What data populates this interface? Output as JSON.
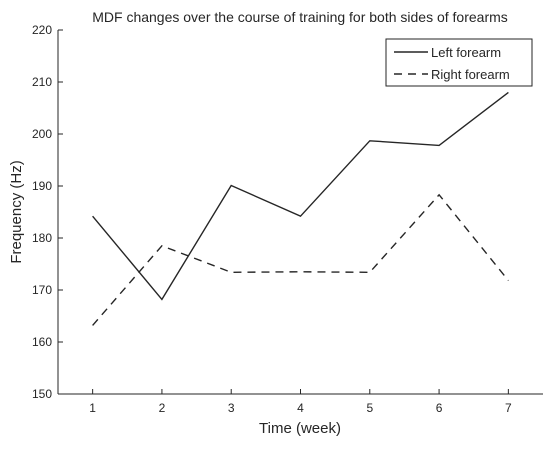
{
  "chart_data": {
    "type": "line",
    "title": "MDF changes over the course of training for both sides of forearms",
    "xlabel": "Time (week)",
    "ylabel": "Frequency (Hz)",
    "x": [
      1,
      2,
      3,
      4,
      5,
      6,
      7
    ],
    "xlim": [
      0.5,
      7.5
    ],
    "ylim": [
      150,
      220
    ],
    "xticks": [
      1,
      2,
      3,
      4,
      5,
      6,
      7
    ],
    "yticks": [
      150,
      160,
      170,
      180,
      190,
      200,
      210,
      220
    ],
    "grid": false,
    "legend_position": "top-right",
    "series": [
      {
        "name": "Left forearm",
        "style": "solid",
        "color": "#262626",
        "values": [
          184.2,
          168.2,
          190.1,
          184.2,
          198.7,
          197.8,
          208.0
        ]
      },
      {
        "name": "Right forearm",
        "style": "dashed",
        "color": "#262626",
        "values": [
          163.2,
          178.5,
          173.4,
          173.5,
          173.4,
          188.3,
          171.8
        ]
      }
    ]
  }
}
